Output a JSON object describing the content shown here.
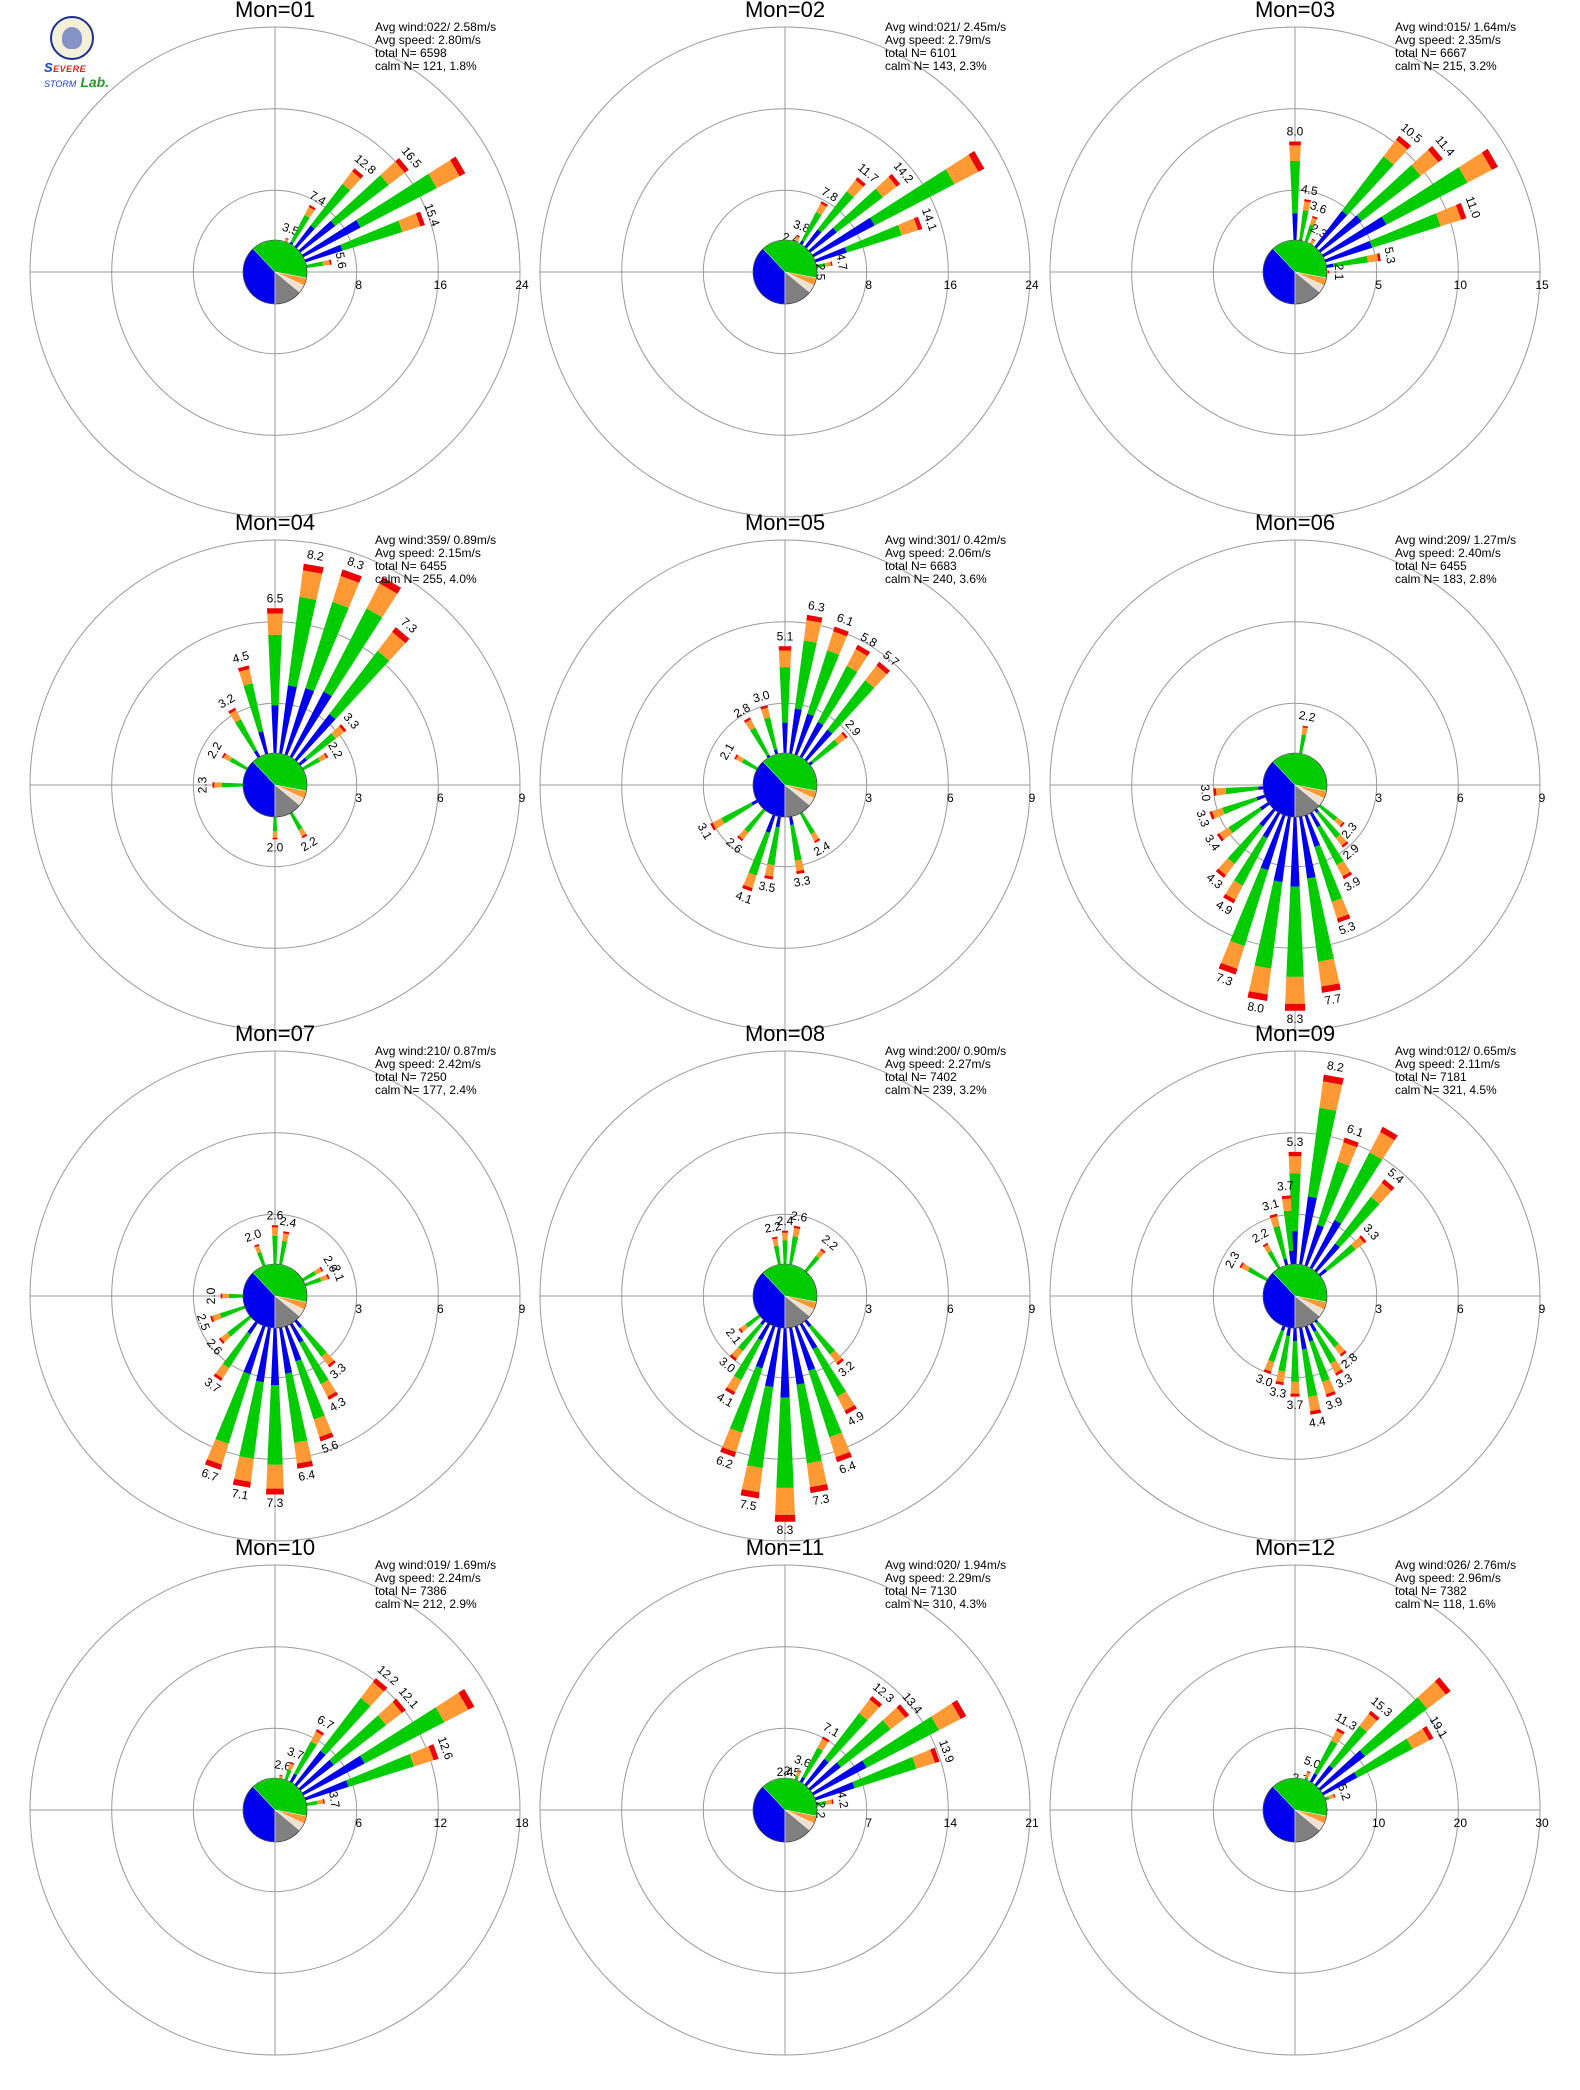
{
  "logo": {
    "letter_s": "S",
    "evere": "EVERE",
    "storm": "STORM",
    "lab": "Lab."
  },
  "colors": {
    "calm_gray": "#808080",
    "speed_bin_1": "#0000ee",
    "speed_bin_2": "#00cc00",
    "speed_bin_3": "#ff9933",
    "speed_bin_4": "#ee0000",
    "grid": "#999999"
  },
  "chart_data": [
    {
      "type": "windrose",
      "title": "Mon=01",
      "rmax": 24,
      "ticks": [
        "8",
        "16",
        "24"
      ],
      "avg_wind": "Avg wind:022/ 2.58m/s",
      "avg_speed": "Avg speed: 2.80m/s",
      "total_n": "total N=      6598",
      "calm_n": "calm N=    121,   1.8%",
      "sectors": [
        {
          "dir": 0,
          "total": 2.2
        },
        {
          "dir": 10,
          "total": 2.4
        },
        {
          "dir": 20,
          "total": 3.5,
          "label": "3.5"
        },
        {
          "dir": 30,
          "total": 7.4,
          "label": "7.4"
        },
        {
          "dir": 40,
          "total": 12.8,
          "label": "12.8"
        },
        {
          "dir": 50,
          "total": 16.5,
          "label": "16.5"
        },
        {
          "dir": 60,
          "total": 21.0
        },
        {
          "dir": 70,
          "total": 15.4,
          "label": "15.4"
        },
        {
          "dir": 80,
          "total": 5.6,
          "label": "5.6"
        },
        {
          "dir": 90,
          "total": 1.6
        }
      ],
      "base": 1.4
    },
    {
      "type": "windrose",
      "title": "Mon=02",
      "rmax": 24,
      "ticks": [
        "8",
        "16",
        "24"
      ],
      "avg_wind": "Avg wind:021/ 2.45m/s",
      "avg_speed": "Avg speed: 2.79m/s",
      "total_n": "total N=      6101",
      "calm_n": "calm N=    143,   2.3%",
      "sectors": [
        {
          "dir": 0,
          "total": 2.0
        },
        {
          "dir": 10,
          "total": 2.4,
          "label": "2.4"
        },
        {
          "dir": 20,
          "total": 3.8,
          "label": "3.8"
        },
        {
          "dir": 30,
          "total": 7.8,
          "label": "7.8"
        },
        {
          "dir": 40,
          "total": 11.7,
          "label": "11.7"
        },
        {
          "dir": 50,
          "total": 14.2,
          "label": "14.2"
        },
        {
          "dir": 60,
          "total": 22.0
        },
        {
          "dir": 70,
          "total": 14.1,
          "label": "14.1"
        },
        {
          "dir": 80,
          "total": 4.7,
          "label": "4.7"
        },
        {
          "dir": 90,
          "total": 2.5,
          "label": "2.5"
        }
      ],
      "base": 1.4
    },
    {
      "type": "windrose",
      "title": "Mon=03",
      "rmax": 15,
      "ticks": [
        "5",
        "10",
        "15"
      ],
      "avg_wind": "Avg wind:015/ 1.64m/s",
      "avg_speed": "Avg speed: 2.35m/s",
      "total_n": "total N=      6667",
      "calm_n": "calm N=    215,   3.2%",
      "sectors": [
        {
          "dir": 0,
          "total": 8.0,
          "label": "8.0"
        },
        {
          "dir": 10,
          "total": 4.5,
          "label": "4.5"
        },
        {
          "dir": 20,
          "total": 3.6,
          "label": "3.6"
        },
        {
          "dir": 30,
          "total": 2.3,
          "label": "2.3"
        },
        {
          "dir": 40,
          "total": 10.5,
          "label": "10.5"
        },
        {
          "dir": 50,
          "total": 11.4,
          "label": "11.4"
        },
        {
          "dir": 60,
          "total": 14.0
        },
        {
          "dir": 70,
          "total": 11.0,
          "label": "11.0"
        },
        {
          "dir": 80,
          "total": 5.3,
          "label": "5.3"
        },
        {
          "dir": 90,
          "total": 2.1,
          "label": "2.1"
        }
      ],
      "base": 1.0
    },
    {
      "type": "windrose",
      "title": "Mon=04",
      "rmax": 9,
      "ticks": [
        "3",
        "6",
        "9"
      ],
      "avg_wind": "Avg wind:359/ 0.89m/s",
      "avg_speed": "Avg speed: 2.15m/s",
      "total_n": "total N=      6455",
      "calm_n": "calm N=    255,   4.0%",
      "sectors": [
        {
          "dir": 0,
          "total": 6.5,
          "label": "6.5"
        },
        {
          "dir": 10,
          "total": 8.2,
          "label": "8.2"
        },
        {
          "dir": 20,
          "total": 8.3,
          "label": "8.3"
        },
        {
          "dir": 30,
          "total": 8.6
        },
        {
          "dir": 40,
          "total": 7.3,
          "label": "7.3"
        },
        {
          "dir": 50,
          "total": 3.3,
          "label": "3.3"
        },
        {
          "dir": 60,
          "total": 2.2,
          "label": "2.2"
        },
        {
          "dir": 150,
          "total": 2.2,
          "label": "2.2"
        },
        {
          "dir": 180,
          "total": 2.0,
          "label": "2.0"
        },
        {
          "dir": 270,
          "total": 2.3,
          "label": "2.3"
        },
        {
          "dir": 300,
          "total": 2.2,
          "label": "2.2"
        },
        {
          "dir": 330,
          "total": 3.2,
          "label": "3.2"
        },
        {
          "dir": 345,
          "total": 4.5,
          "label": "4.5"
        }
      ],
      "base": 0.8
    },
    {
      "type": "windrose",
      "title": "Mon=05",
      "rmax": 9,
      "ticks": [
        "3",
        "6",
        "9"
      ],
      "avg_wind": "Avg wind:301/ 0.42m/s",
      "avg_speed": "Avg speed: 2.06m/s",
      "total_n": "total N=      6683",
      "calm_n": "calm N=    240,   3.6%",
      "sectors": [
        {
          "dir": 0,
          "total": 5.1,
          "label": "5.1"
        },
        {
          "dir": 10,
          "total": 6.3,
          "label": "6.3"
        },
        {
          "dir": 20,
          "total": 6.1,
          "label": "6.1"
        },
        {
          "dir": 30,
          "total": 5.8,
          "label": "5.8"
        },
        {
          "dir": 40,
          "total": 5.7,
          "label": "5.7"
        },
        {
          "dir": 50,
          "total": 2.9,
          "label": "2.9"
        },
        {
          "dir": 150,
          "total": 2.4,
          "label": "2.4"
        },
        {
          "dir": 170,
          "total": 3.3,
          "label": "3.3"
        },
        {
          "dir": 190,
          "total": 3.5,
          "label": "3.5"
        },
        {
          "dir": 200,
          "total": 4.1,
          "label": "4.1"
        },
        {
          "dir": 220,
          "total": 2.6,
          "label": "2.6"
        },
        {
          "dir": 240,
          "total": 3.1,
          "label": "3.1"
        },
        {
          "dir": 300,
          "total": 2.1,
          "label": "2.1"
        },
        {
          "dir": 330,
          "total": 2.8,
          "label": "2.8"
        },
        {
          "dir": 345,
          "total": 3.0,
          "label": "3.0"
        }
      ],
      "base": 0.8
    },
    {
      "type": "windrose",
      "title": "Mon=06",
      "rmax": 9,
      "ticks": [
        "3",
        "6",
        "9"
      ],
      "avg_wind": "Avg wind:209/ 1.27m/s",
      "avg_speed": "Avg speed: 2.40m/s",
      "total_n": "total N=      6455",
      "calm_n": "calm N=    183,   2.8%",
      "sectors": [
        {
          "dir": 10,
          "total": 2.2,
          "label": "2.2"
        },
        {
          "dir": 130,
          "total": 2.3,
          "label": "2.3"
        },
        {
          "dir": 140,
          "total": 2.9,
          "label": "2.9"
        },
        {
          "dir": 150,
          "total": 3.9,
          "label": "3.9"
        },
        {
          "dir": 160,
          "total": 5.3,
          "label": "5.3"
        },
        {
          "dir": 170,
          "total": 7.7,
          "label": "7.7"
        },
        {
          "dir": 180,
          "total": 8.3,
          "label": "8.3"
        },
        {
          "dir": 190,
          "total": 8.0,
          "label": "8.0"
        },
        {
          "dir": 200,
          "total": 7.3,
          "label": "7.3"
        },
        {
          "dir": 210,
          "total": 4.9,
          "label": "4.9"
        },
        {
          "dir": 220,
          "total": 4.3,
          "label": "4.3"
        },
        {
          "dir": 235,
          "total": 3.4,
          "label": "3.4"
        },
        {
          "dir": 250,
          "total": 3.3,
          "label": "3.3"
        },
        {
          "dir": 265,
          "total": 3.0,
          "label": "3.0"
        }
      ],
      "base": 0.8
    },
    {
      "type": "windrose",
      "title": "Mon=07",
      "rmax": 9,
      "ticks": [
        "3",
        "6",
        "9"
      ],
      "avg_wind": "Avg wind:210/ 0.87m/s",
      "avg_speed": "Avg speed: 2.42m/s",
      "total_n": "total N=      7250",
      "calm_n": "calm N=    177,   2.4%",
      "sectors": [
        {
          "dir": 0,
          "total": 2.6,
          "label": "2.6"
        },
        {
          "dir": 10,
          "total": 2.4,
          "label": "2.4"
        },
        {
          "dir": 60,
          "total": 2.0,
          "label": "2.0"
        },
        {
          "dir": 70,
          "total": 2.1,
          "label": "2.1"
        },
        {
          "dir": 140,
          "total": 3.3,
          "label": "3.3"
        },
        {
          "dir": 150,
          "total": 4.3,
          "label": "4.3"
        },
        {
          "dir": 160,
          "total": 5.6,
          "label": "5.6"
        },
        {
          "dir": 170,
          "total": 6.4,
          "label": "6.4"
        },
        {
          "dir": 180,
          "total": 7.3,
          "label": "7.3"
        },
        {
          "dir": 190,
          "total": 7.1,
          "label": "7.1"
        },
        {
          "dir": 200,
          "total": 6.7,
          "label": "6.7"
        },
        {
          "dir": 215,
          "total": 3.7,
          "label": "3.7"
        },
        {
          "dir": 230,
          "total": 2.6,
          "label": "2.6"
        },
        {
          "dir": 250,
          "total": 2.5,
          "label": "2.5"
        },
        {
          "dir": 270,
          "total": 2.0,
          "label": "2.0"
        },
        {
          "dir": 340,
          "total": 2.0,
          "label": "2.0"
        }
      ],
      "base": 0.8
    },
    {
      "type": "windrose",
      "title": "Mon=08",
      "rmax": 9,
      "ticks": [
        "3",
        "6",
        "9"
      ],
      "avg_wind": "Avg wind:200/ 0.90m/s",
      "avg_speed": "Avg speed: 2.27m/s",
      "total_n": "total N=      7402",
      "calm_n": "calm N=    239,   3.2%",
      "sectors": [
        {
          "dir": 350,
          "total": 2.2,
          "label": "2.2"
        },
        {
          "dir": 0,
          "total": 2.4,
          "label": "2.4"
        },
        {
          "dir": 10,
          "total": 2.6,
          "label": "2.6"
        },
        {
          "dir": 40,
          "total": 2.2,
          "label": "2.2"
        },
        {
          "dir": 140,
          "total": 3.2,
          "label": "3.2"
        },
        {
          "dir": 150,
          "total": 4.9,
          "label": "4.9"
        },
        {
          "dir": 160,
          "total": 6.4,
          "label": "6.4"
        },
        {
          "dir": 170,
          "total": 7.3,
          "label": "7.3"
        },
        {
          "dir": 180,
          "total": 8.3,
          "label": "8.3"
        },
        {
          "dir": 190,
          "total": 7.5,
          "label": "7.5"
        },
        {
          "dir": 200,
          "total": 6.2,
          "label": "6.2"
        },
        {
          "dir": 210,
          "total": 4.1,
          "label": "4.1"
        },
        {
          "dir": 220,
          "total": 3.0,
          "label": "3.0"
        },
        {
          "dir": 232,
          "total": 2.1,
          "label": "2.1"
        }
      ],
      "base": 0.8
    },
    {
      "type": "windrose",
      "title": "Mon=09",
      "rmax": 9,
      "ticks": [
        "3",
        "6",
        "9"
      ],
      "avg_wind": "Avg wind:012/ 0.65m/s",
      "avg_speed": "Avg speed: 2.11m/s",
      "total_n": "total N=      7181",
      "calm_n": "calm N=    321,   4.5%",
      "sectors": [
        {
          "dir": 0,
          "total": 5.3,
          "label": "5.3"
        },
        {
          "dir": 10,
          "total": 8.2,
          "label": "8.2"
        },
        {
          "dir": 20,
          "total": 6.1,
          "label": "6.1"
        },
        {
          "dir": 30,
          "total": 7.0
        },
        {
          "dir": 40,
          "total": 5.4,
          "label": "5.4"
        },
        {
          "dir": 50,
          "total": 3.3,
          "label": "3.3"
        },
        {
          "dir": 140,
          "total": 2.8,
          "label": "2.8"
        },
        {
          "dir": 150,
          "total": 3.3,
          "label": "3.3"
        },
        {
          "dir": 160,
          "total": 3.9,
          "label": "3.9"
        },
        {
          "dir": 170,
          "total": 4.4,
          "label": "4.4"
        },
        {
          "dir": 180,
          "total": 3.7,
          "label": "3.7"
        },
        {
          "dir": 190,
          "total": 3.3,
          "label": "3.3"
        },
        {
          "dir": 200,
          "total": 3.0,
          "label": "3.0"
        },
        {
          "dir": 300,
          "total": 2.3,
          "label": "2.3"
        },
        {
          "dir": 330,
          "total": 2.2,
          "label": "2.2"
        },
        {
          "dir": 345,
          "total": 3.1,
          "label": "3.1"
        },
        {
          "dir": 355,
          "total": 3.7,
          "label": "3.7"
        }
      ],
      "base": 0.8
    },
    {
      "type": "windrose",
      "title": "Mon=10",
      "rmax": 18,
      "ticks": [
        "6",
        "12",
        "18"
      ],
      "avg_wind": "Avg wind:019/ 1.69m/s",
      "avg_speed": "Avg speed: 2.24m/s",
      "total_n": "total N=      7386",
      "calm_n": "calm N=    212,   2.9%",
      "sectors": [
        {
          "dir": 0,
          "total": 2.0
        },
        {
          "dir": 10,
          "total": 2.6,
          "label": "2.6"
        },
        {
          "dir": 20,
          "total": 3.7,
          "label": "3.7"
        },
        {
          "dir": 30,
          "total": 6.7,
          "label": "6.7"
        },
        {
          "dir": 40,
          "total": 12.2,
          "label": "12.2"
        },
        {
          "dir": 50,
          "total": 12.1,
          "label": "12.1"
        },
        {
          "dir": 60,
          "total": 16.5
        },
        {
          "dir": 70,
          "total": 12.6,
          "label": "12.6"
        },
        {
          "dir": 80,
          "total": 3.7,
          "label": "3.7"
        },
        {
          "dir": 90,
          "total": 1.6
        }
      ],
      "base": 1.1
    },
    {
      "type": "windrose",
      "title": "Mon=11",
      "rmax": 21,
      "ticks": [
        "7",
        "14",
        "21"
      ],
      "avg_wind": "Avg wind:020/ 1.94m/s",
      "avg_speed": "Avg speed: 2.29m/s",
      "total_n": "total N=      7130",
      "calm_n": "calm N=    310,   4.3%",
      "sectors": [
        {
          "dir": 0,
          "total": 2.4,
          "label": "2.4"
        },
        {
          "dir": 10,
          "total": 2.5,
          "label": "2.5"
        },
        {
          "dir": 20,
          "total": 3.6,
          "label": "3.6"
        },
        {
          "dir": 30,
          "total": 7.1,
          "label": "7.1"
        },
        {
          "dir": 40,
          "total": 12.3,
          "label": "12.3"
        },
        {
          "dir": 50,
          "total": 13.4,
          "label": "13.4"
        },
        {
          "dir": 60,
          "total": 17.5
        },
        {
          "dir": 70,
          "total": 13.9,
          "label": "13.9"
        },
        {
          "dir": 80,
          "total": 4.2,
          "label": "4.2"
        },
        {
          "dir": 90,
          "total": 2.2,
          "label": "2.2"
        }
      ],
      "base": 1.2
    },
    {
      "type": "windrose",
      "title": "Mon=12",
      "rmax": 30,
      "ticks": [
        "10",
        "20",
        "30"
      ],
      "avg_wind": "Avg wind:026/ 2.76m/s",
      "avg_speed": "Avg speed: 2.96m/s",
      "total_n": "total N=      7382",
      "calm_n": "calm N=    118,   1.6%",
      "sectors": [
        {
          "dir": 0,
          "total": 2.0
        },
        {
          "dir": 10,
          "total": 2.7,
          "label": "2.7"
        },
        {
          "dir": 20,
          "total": 5.0,
          "label": "5.0"
        },
        {
          "dir": 30,
          "total": 11.3,
          "label": "11.3"
        },
        {
          "dir": 40,
          "total": 15.3,
          "label": "15.3"
        },
        {
          "dir": 50,
          "total": 24.0
        },
        {
          "dir": 60,
          "total": 19.1,
          "label": "19.1"
        },
        {
          "dir": 70,
          "total": 5.2,
          "label": "5.2"
        },
        {
          "dir": 80,
          "total": 2.2,
          "label": "2.2"
        }
      ],
      "base": 1.8
    }
  ]
}
